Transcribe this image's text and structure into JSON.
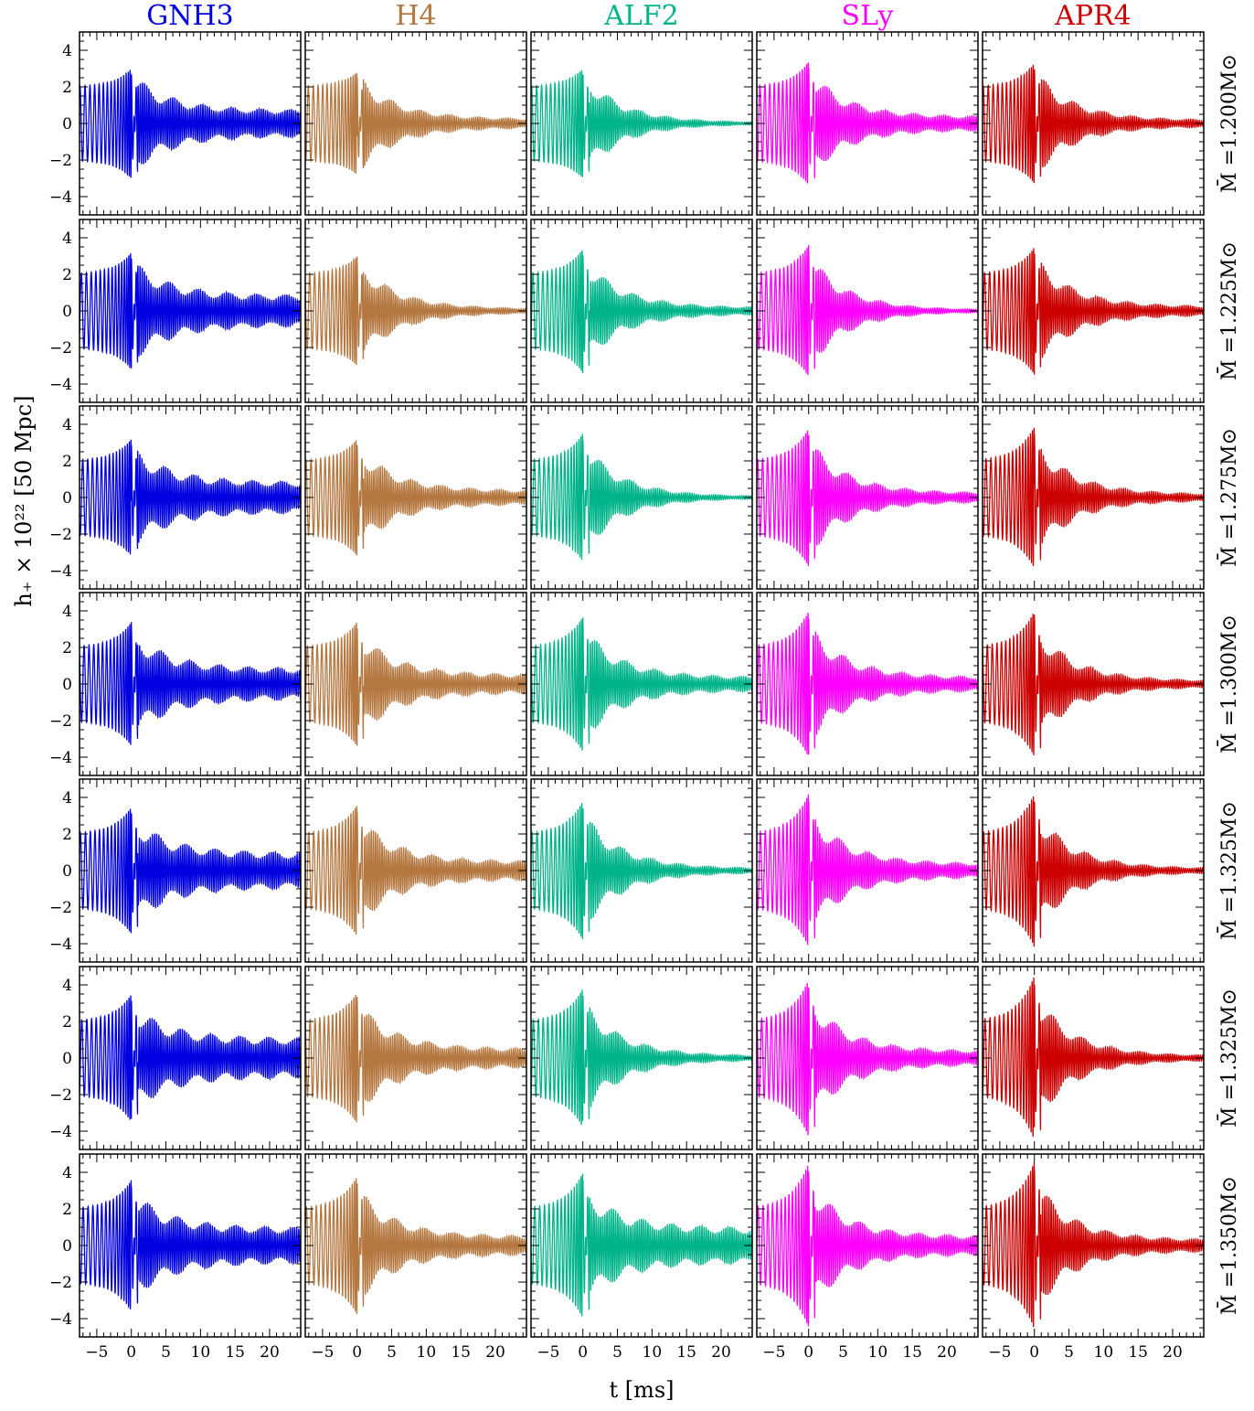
{
  "chart_data": {
    "type": "line",
    "columns": [
      {
        "name": "GNH3",
        "color": "#0000e0"
      },
      {
        "name": "H4",
        "color": "#b4773f"
      },
      {
        "name": "ALF2",
        "color": "#00b48a"
      },
      {
        "name": "SLy",
        "color": "#ff00ff"
      },
      {
        "name": "APR4",
        "color": "#cc0000"
      }
    ],
    "rows": [
      {
        "label": "M̄ =1.200M⊙"
      },
      {
        "label": "M̄ =1.225M⊙"
      },
      {
        "label": "M̄ =1.275M⊙"
      },
      {
        "label": "M̄ =1.300M⊙"
      },
      {
        "label": "M̄ =1.325M⊙"
      },
      {
        "label": "M̄ =1.325M⊙"
      },
      {
        "label": "M̄ =1.350M⊙"
      }
    ],
    "xlabel": "t [ms]",
    "ylabel": "h₊ × 10²² [50 Mpc]",
    "xlim": [
      -7.5,
      24.5
    ],
    "ylim": [
      -5,
      5
    ],
    "xticks": [
      -5,
      0,
      5,
      10,
      15,
      20
    ],
    "xtick_labels": [
      "−5",
      "0",
      "5",
      "10",
      "15",
      "20"
    ],
    "yticks": [
      4,
      2,
      0,
      -2,
      -4
    ],
    "ytick_labels": [
      "4",
      "2",
      "0",
      "−2",
      "−4"
    ],
    "peak_amplitude": [
      [
        3.0,
        3.2,
        3.2,
        3.4,
        3.5,
        3.5,
        3.6
      ],
      [
        2.8,
        3.0,
        3.2,
        3.4,
        3.6,
        3.6,
        3.8
      ],
      [
        3.0,
        3.4,
        3.5,
        3.7,
        3.8,
        3.8,
        4.0
      ],
      [
        3.4,
        3.6,
        3.8,
        4.0,
        4.2,
        4.3,
        4.5
      ],
      [
        3.3,
        3.5,
        3.9,
        4.0,
        4.2,
        4.5,
        4.6
      ]
    ],
    "postmerger_end_amplitude": [
      [
        0.6,
        0.7,
        0.7,
        0.7,
        0.8,
        0.9,
        0.8
      ],
      [
        0.2,
        0.1,
        0.3,
        0.4,
        0.4,
        0.4,
        0.4
      ],
      [
        0.05,
        0.15,
        0.05,
        0.3,
        0.1,
        0.1,
        0.8
      ],
      [
        0.3,
        0.05,
        0.2,
        0.3,
        0.3,
        0.3,
        0.4
      ],
      [
        0.15,
        0.2,
        0.15,
        0.15,
        0.1,
        0.1,
        0.25
      ]
    ],
    "grid": false
  }
}
